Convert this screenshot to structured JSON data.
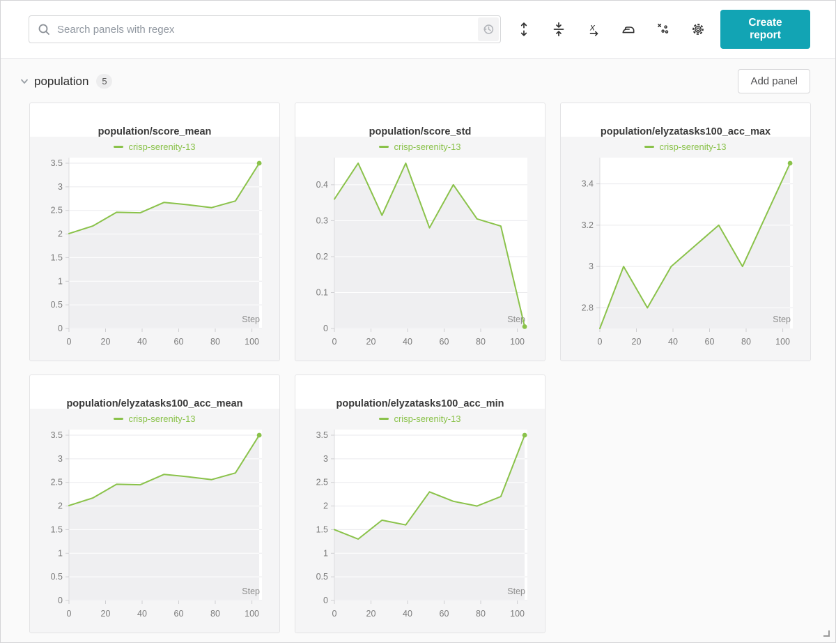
{
  "colors": {
    "accent_teal": "#12a4b4",
    "line_green": "#8ac24a",
    "panel_bg": "#f5f5f6",
    "fill_gray": "#efeff1",
    "grid_line": "#eaeaed",
    "tick_text": "#7b7b7b"
  },
  "toolbar": {
    "search_placeholder": "Search panels with regex",
    "search_icon": "search-icon",
    "history_icon": "history-icon",
    "create_report_label": "Create report",
    "icons": [
      {
        "name": "expand-vertical-icon"
      },
      {
        "name": "collapse-vertical-icon"
      },
      {
        "name": "x-axis-settings-icon"
      },
      {
        "name": "smoothing-iron-icon"
      },
      {
        "name": "outliers-icon"
      },
      {
        "name": "settings-gear-icon"
      }
    ]
  },
  "section": {
    "collapse_icon": "chevron-down-icon",
    "title": "population",
    "panel_count": "5",
    "add_panel_label": "Add panel"
  },
  "resize_handle_icon": "resize-corner-icon",
  "chart_data": [
    {
      "type": "line",
      "title": "population/score_mean",
      "xlabel": "Step",
      "xlim": [
        0,
        105.5
      ],
      "ylim": [
        0,
        3.5
      ],
      "xticks": [
        0,
        20,
        40,
        60,
        80,
        100
      ],
      "yticks": [
        0,
        0.5,
        1,
        1.5,
        2,
        2.5,
        3,
        3.5
      ],
      "series": [
        {
          "name": "crisp-serenity-13",
          "color": "#8ac24a",
          "x": [
            0,
            13,
            26,
            39,
            52,
            65,
            78,
            91,
            104
          ],
          "y": [
            2.01,
            2.17,
            2.46,
            2.45,
            2.67,
            2.62,
            2.56,
            2.7,
            3.5
          ]
        }
      ]
    },
    {
      "type": "line",
      "title": "population/score_std",
      "xlabel": "Step",
      "xlim": [
        0,
        105.5
      ],
      "ylim": [
        0,
        0.46
      ],
      "xticks": [
        0,
        20,
        40,
        60,
        80,
        100
      ],
      "yticks": [
        0,
        0.1,
        0.2,
        0.3,
        0.4
      ],
      "series": [
        {
          "name": "crisp-serenity-13",
          "color": "#8ac24a",
          "x": [
            0,
            13,
            26,
            39,
            52,
            65,
            78,
            91,
            104
          ],
          "y": [
            0.36,
            0.46,
            0.315,
            0.46,
            0.28,
            0.4,
            0.305,
            0.285,
            0.005
          ]
        }
      ]
    },
    {
      "type": "line",
      "title": "population/elyzatasks100_acc_max",
      "xlabel": "Step",
      "xlim": [
        0,
        105.5
      ],
      "ylim": [
        2.7,
        3.5
      ],
      "xticks": [
        0,
        20,
        40,
        60,
        80,
        100
      ],
      "yticks": [
        2.8,
        3,
        3.2,
        3.4
      ],
      "series": [
        {
          "name": "crisp-serenity-13",
          "color": "#8ac24a",
          "x": [
            0,
            13,
            26,
            39,
            52,
            65,
            78,
            91,
            104
          ],
          "y": [
            2.7,
            3.0,
            2.8,
            3.0,
            3.1,
            3.2,
            3.0,
            3.25,
            3.5
          ]
        }
      ]
    },
    {
      "type": "line",
      "title": "population/elyzatasks100_acc_mean",
      "xlabel": "Step",
      "xlim": [
        0,
        105.5
      ],
      "ylim": [
        0,
        3.5
      ],
      "xticks": [
        0,
        20,
        40,
        60,
        80,
        100
      ],
      "yticks": [
        0,
        0.5,
        1,
        1.5,
        2,
        2.5,
        3,
        3.5
      ],
      "series": [
        {
          "name": "crisp-serenity-13",
          "color": "#8ac24a",
          "x": [
            0,
            13,
            26,
            39,
            52,
            65,
            78,
            91,
            104
          ],
          "y": [
            2.01,
            2.17,
            2.46,
            2.45,
            2.67,
            2.62,
            2.56,
            2.7,
            3.5
          ]
        }
      ]
    },
    {
      "type": "line",
      "title": "population/elyzatasks100_acc_min",
      "xlabel": "Step",
      "xlim": [
        0,
        105.5
      ],
      "ylim": [
        0,
        3.5
      ],
      "xticks": [
        0,
        20,
        40,
        60,
        80,
        100
      ],
      "yticks": [
        0,
        0.5,
        1,
        1.5,
        2,
        2.5,
        3,
        3.5
      ],
      "series": [
        {
          "name": "crisp-serenity-13",
          "color": "#8ac24a",
          "x": [
            0,
            13,
            26,
            39,
            52,
            65,
            78,
            91,
            104
          ],
          "y": [
            1.5,
            1.3,
            1.7,
            1.6,
            2.3,
            2.1,
            2.0,
            2.2,
            3.5
          ]
        }
      ]
    }
  ]
}
